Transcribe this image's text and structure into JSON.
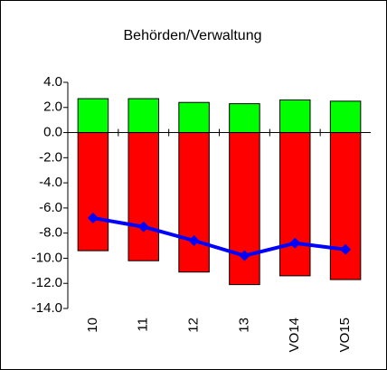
{
  "chart_data": {
    "type": "bar",
    "title": "Behörden/Verwaltung",
    "categories": [
      "10",
      "11",
      "12",
      "13",
      "VO14",
      "VO15"
    ],
    "series": [
      {
        "color": "#00ff00",
        "values": [
          2.7,
          2.7,
          2.4,
          2.3,
          2.6,
          2.5
        ],
        "kind": "bar"
      },
      {
        "color": "#ff0000",
        "values": [
          -9.4,
          -10.2,
          -11.1,
          -12.1,
          -11.4,
          -11.7
        ],
        "kind": "bar"
      },
      {
        "color": "#0000ff",
        "values": [
          -6.8,
          -7.5,
          -8.6,
          -9.8,
          -8.8,
          -9.3
        ],
        "kind": "line"
      }
    ],
    "ylim": [
      -14,
      4
    ],
    "yticks": [
      {
        "value": 4,
        "label": "4.0"
      },
      {
        "value": 2,
        "label": "2.0"
      },
      {
        "value": 0,
        "label": "0.0"
      },
      {
        "value": -2,
        "label": "-2.0"
      },
      {
        "value": -4,
        "label": "-4.0"
      },
      {
        "value": -6,
        "label": "-6.0"
      },
      {
        "value": -8,
        "label": "-8.0"
      },
      {
        "value": -10,
        "label": "-10.0"
      },
      {
        "value": -12,
        "label": "-12.0"
      },
      {
        "value": -14,
        "label": "-14.0"
      }
    ]
  }
}
